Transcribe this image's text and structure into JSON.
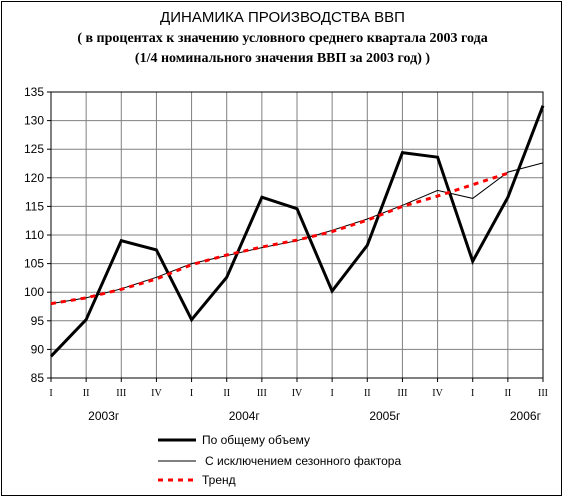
{
  "chart_data": {
    "type": "line",
    "title": "ДИНАМИКА ПРОИЗВОДСТВА ВВП",
    "subtitle_line1": "( в процентах к значению условного среднего квартала 2003 года",
    "subtitle_line2": "(1/4 номинального значения ВВП за 2003 год) )",
    "ylim": [
      85,
      135
    ],
    "yticks": [
      85,
      90,
      95,
      100,
      105,
      110,
      115,
      120,
      125,
      130,
      135
    ],
    "quarter_labels": [
      "I",
      "II",
      "III",
      "IV",
      "I",
      "II",
      "III",
      "IV",
      "I",
      "II",
      "III",
      "IV",
      "I",
      "II",
      "III"
    ],
    "year_labels": [
      {
        "label": "2003г",
        "index": 1.5
      },
      {
        "label": "2004г",
        "index": 5.5
      },
      {
        "label": "2005г",
        "index": 9.5
      },
      {
        "label": "2006г",
        "index": 13.5
      }
    ],
    "series": [
      {
        "name": "По общему объему",
        "color": "#000000",
        "style": "thick",
        "values": [
          88.8,
          95.2,
          109.0,
          107.4,
          95.2,
          102.6,
          116.6,
          114.6,
          100.2,
          108.2,
          124.4,
          123.6,
          105.4,
          116.6,
          132.6
        ]
      },
      {
        "name": "С исключением сезонного фактора",
        "color": "#000000",
        "style": "thin",
        "values": [
          98.0,
          99.0,
          100.6,
          102.6,
          105.0,
          106.4,
          107.8,
          109.0,
          110.8,
          112.8,
          115.2,
          117.8,
          116.4,
          121.0,
          122.6
        ]
      },
      {
        "name": "Тренд",
        "color": "#ff0000",
        "style": "dashed",
        "values": [
          98.0,
          99.0,
          100.5,
          102.3,
          104.8,
          106.5,
          107.9,
          109.1,
          110.6,
          112.6,
          115.0,
          116.8,
          118.8,
          120.8,
          null
        ]
      }
    ]
  }
}
